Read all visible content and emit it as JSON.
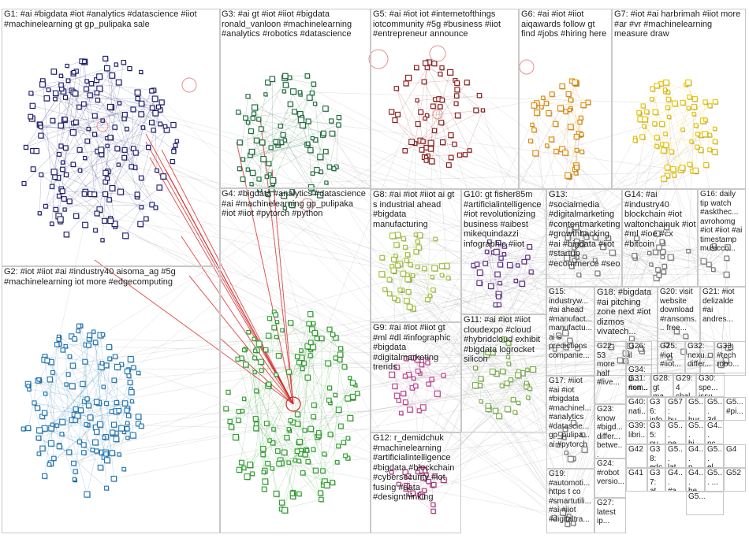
{
  "colors": {
    "G1": "#1a1a6e",
    "G2": "#1f77b4",
    "G3": "#1b6b3a",
    "G4": "#2ca02c",
    "G5": "#8b1a1a",
    "G6": "#e08a00",
    "G7": "#e6c200",
    "G8": "#a3c23a",
    "G9": "#c03d8f",
    "G10": "#5a2a82",
    "G11": "#7ab04a",
    "G12": "#b0307a",
    "edge": "#b4b4b4",
    "edge_strong": "#d42020"
  },
  "groups": [
    {
      "id": "G1",
      "label": "G1: #ai #bigdata #iot #analytics #datascience #iiot #machinelearning gt gp_pulipaka sale"
    },
    {
      "id": "G2",
      "label": "G2: #iot #iiot #ai #industry40 aisoma_ag #5g #machinelearning iot more #edgecomputing"
    },
    {
      "id": "G3",
      "label": "G3: #ai gt #iot #iiot #bigdata ronald_vanloon #machinelearning #analytics #robotics #datascience"
    },
    {
      "id": "G4",
      "label": "G4: #bigdata #analytics #datascience #ai #machinelearning gp_pulipaka #iot #iiot #pytorch #python"
    },
    {
      "id": "G5",
      "label": "G5: #ai #iot iot #internetofthings iotcommunity #5g #business #iiot #entrepreneur announce"
    },
    {
      "id": "G6",
      "label": "G6: #ai #iot #iiot aiqawards follow gt find #jobs #hiring here"
    },
    {
      "id": "G7",
      "label": "G7: #iot #ai harbrimah #iiot more #ar #vr #machinelearning measure draw"
    },
    {
      "id": "G8",
      "label": "G8: #ai #iot #iiot ai gt s industrial ahead #bigdata manufacturing"
    },
    {
      "id": "G9",
      "label": "G9: #ai #iot #iiot gt #ml #dl #infographic #bigdata #digitalmarketing trends"
    },
    {
      "id": "G10",
      "label": "G10: gt fisher85m #artificialintelligence #iot revolutionizing business #aibest mikequindazzi infographic #iiot"
    },
    {
      "id": "G11",
      "label": "G11: #ai #iot #iiot cloudexpo #cloud #hybridcloud exhibit #bigdata logrocket silicon"
    },
    {
      "id": "G12",
      "label": "G12: r_demidchuk #machinelearning #artificialintelligence #bigdata #blockchain #cybersecurity #iot fusing #data #designthinking"
    },
    {
      "id": "G13",
      "label": "G13: #socialmedia #digitalmarketing #contentmarketing #growthhacking #ai #bigdata #iiot #startup #ecommerce #seo"
    },
    {
      "id": "G14",
      "label": "G14: #ai #industry40 blockchain #iot waltonchainuk #iot #ml #ioe #cx #bitcoin"
    },
    {
      "id": "G16",
      "label": "G16: daily tip watch #askthec... avrohomg #iot #iiot #ai timestamp musicco..."
    },
    {
      "id": "G15",
      "label": "G15: industryw... #ai ahead #manufact... manufactu... ai s predictions companie..."
    },
    {
      "id": "G18",
      "label": "G18: #bigdata #ai pitching zone next #iot dizmos vivatech..."
    },
    {
      "id": "G20",
      "label": "G20: visit website download #ransoms... free..."
    },
    {
      "id": "G21",
      "label": "G21: #iot delizalde #ai andres..."
    },
    {
      "id": "G17",
      "label": "G17: #iiot #ai #iot #bigdata #machinel... #analytics #datascie... gp_pulipa... ai #pytorch"
    },
    {
      "id": "G22",
      "label": "G22: 53 more half #live..."
    },
    {
      "id": "G26",
      "label": "G26: il"
    },
    {
      "id": "G25",
      "label": "G25: #iot #iiot..."
    },
    {
      "id": "G32",
      "label": "G32: nexu... differ..."
    },
    {
      "id": "G33",
      "label": "G33: #tech robo..."
    },
    {
      "id": "G34",
      "label": "G34: d... non..."
    },
    {
      "id": "G31",
      "label": "G31: #sm... key..."
    },
    {
      "id": "G28",
      "label": "G28: gt ma..."
    },
    {
      "id": "G29",
      "label": "G29: 4 chal..."
    },
    {
      "id": "G30",
      "label": "G30: spe... issu..."
    },
    {
      "id": "G23",
      "label": "G23: know #bigd... differ... betwe..."
    },
    {
      "id": "G40",
      "label": "G40: nati..."
    },
    {
      "id": "G36",
      "label": "G36: info"
    },
    {
      "id": "G57",
      "label": "G57: hu..."
    },
    {
      "id": "G5a",
      "label": "G5... hur..."
    },
    {
      "id": "G5b",
      "label": "G5... 3d..."
    },
    {
      "id": "G5c",
      "label": "G5... #pi..."
    },
    {
      "id": "G39",
      "label": "G39: libri..."
    },
    {
      "id": "G35",
      "label": "G35: pu..."
    },
    {
      "id": "G5d",
      "label": "G5... ne..."
    },
    {
      "id": "G5e",
      "label": "G5... bi..."
    },
    {
      "id": "G4a",
      "label": "G4... nc..."
    },
    {
      "id": "G19",
      "label": "G19: #automoti... https t co #smartutili... #ai #iiot #digitaltra..."
    },
    {
      "id": "G24",
      "label": "G24: #robot versio..."
    },
    {
      "id": "G42",
      "label": "G42"
    },
    {
      "id": "G38",
      "label": "G38: edc..."
    },
    {
      "id": "G5f",
      "label": "G5... lat..."
    },
    {
      "id": "G4b",
      "label": "G4... p..."
    },
    {
      "id": "G5g",
      "label": "G5... el..."
    },
    {
      "id": "G4c",
      "label": "G4"
    },
    {
      "id": "G52",
      "label": "G52"
    },
    {
      "id": "G27",
      "label": "G27: latest ip..."
    },
    {
      "id": "G41",
      "label": "G41"
    },
    {
      "id": "G37",
      "label": "G37: at..."
    },
    {
      "id": "G4d",
      "label": "G4... #a..."
    },
    {
      "id": "G4e",
      "label": "G4... be..."
    },
    {
      "id": "G5h",
      "label": "G5... ..."
    },
    {
      "id": "G5i",
      "label": "G5..."
    }
  ]
}
